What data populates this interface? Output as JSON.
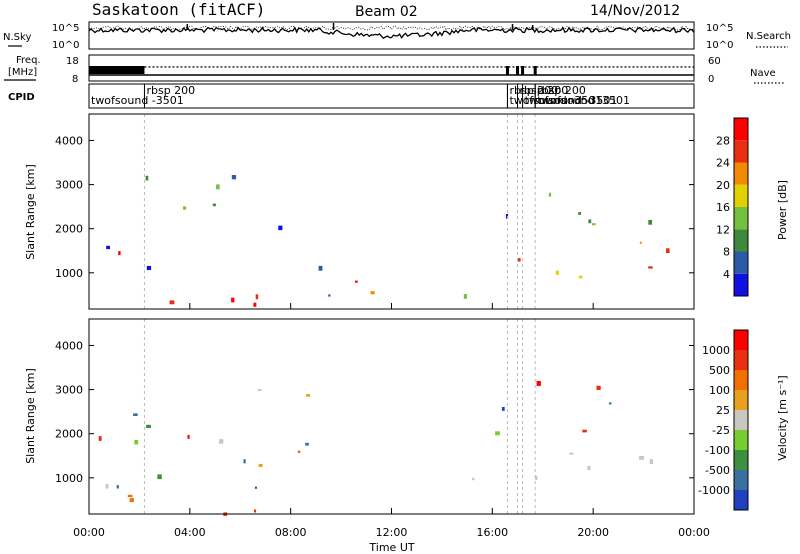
{
  "header": {
    "station": "Saskatoon (fitACF)",
    "beam": "Beam 02",
    "date": "14/Nov/2012"
  },
  "noise_panel": {
    "left_label": "N.Sky",
    "right_label": "N.Search",
    "tick_top": "10^5",
    "tick_bottom": "10^0"
  },
  "freq_panel": {
    "left_label_line1": "Freq.",
    "left_label_line2": "[MHz]",
    "tick_top": "18",
    "tick_bottom": "8",
    "right_tick_top": "60",
    "right_tick_bottom": "0",
    "right_label": "Nave"
  },
  "cpid_panel": {
    "label": "CPID",
    "entries": [
      {
        "label": "twofsound -3501",
        "time": 0.0,
        "row": 1
      },
      {
        "label": "rbsp 200",
        "time": 2.2,
        "row": 0
      },
      {
        "label": "rbsp 200",
        "time": 16.6,
        "row": 0
      },
      {
        "label": "twofsound -3501",
        "time": 16.6,
        "row": 1
      },
      {
        "label": "rbsp 200",
        "time": 17.0,
        "row": 0
      },
      {
        "label": "twofsound -3501",
        "time": 17.2,
        "row": 1
      },
      {
        "label": "rbsp 200",
        "time": 17.7,
        "row": 0
      },
      {
        "label": "twofsound -3501",
        "time": 17.7,
        "row": 1
      }
    ]
  },
  "axes": {
    "xlabel": "Time UT",
    "ylabel": "Slant Range [km]",
    "xticks": [
      "00:00",
      "04:00",
      "08:00",
      "12:00",
      "16:00",
      "20:00",
      "00:00"
    ],
    "yticks": [
      "1000",
      "2000",
      "3000",
      "4000"
    ]
  },
  "power_scale": {
    "label": "Power [dB]",
    "ticks": [
      "4",
      "8",
      "12",
      "16",
      "20",
      "24",
      "28"
    ],
    "colors": [
      "#1010e0",
      "#2c5aa8",
      "#3f8a3a",
      "#74c040",
      "#e3d000",
      "#f08a00",
      "#e83010",
      "#ff0000"
    ]
  },
  "velocity_scale": {
    "label": "Velocity [m s⁻¹]",
    "ticks": [
      "1000",
      "500",
      "100",
      "25",
      "-25",
      "-100",
      "-500",
      "-1000"
    ],
    "colors": [
      "#2040c0",
      "#3a6fa0",
      "#3e8f3e",
      "#78cc30",
      "#c8c8c0",
      "#e8a020",
      "#f07000",
      "#e83010",
      "#ff0000"
    ]
  },
  "chart_data": {
    "type": "heatmap",
    "title": "Saskatoon (fitACF)",
    "subtitle": "Beam 02",
    "date": "14/Nov/2012",
    "xlabel": "Time UT",
    "ylabel": "Slant Range [km]",
    "xlim": [
      0,
      24
    ],
    "ylim": [
      180,
      4600
    ],
    "panels": [
      {
        "name": "Power",
        "colorbar_label": "Power [dB]",
        "colorbar_range": [
          0,
          32
        ],
        "echo_regions": [
          {
            "t0": 0.0,
            "t1": 9.0,
            "r0": 200,
            "r1": 800,
            "level": "high"
          },
          {
            "t0": 0.0,
            "t1": 2.5,
            "r0": 800,
            "r1": 2200,
            "level": "mixed"
          },
          {
            "t0": 1.5,
            "t1": 8.0,
            "r0": 2000,
            "r1": 3300,
            "level": "low"
          },
          {
            "t0": 8.0,
            "t1": 12.0,
            "r0": 200,
            "r1": 1500,
            "level": "mixed"
          },
          {
            "t0": 12.0,
            "t1": 16.0,
            "r0": 200,
            "r1": 600,
            "level": "low"
          },
          {
            "t0": 15.0,
            "t1": 24.0,
            "r0": 900,
            "r1": 1800,
            "level": "high"
          },
          {
            "t0": 16.0,
            "t1": 23.0,
            "r0": 2000,
            "r1": 3200,
            "level": "low"
          }
        ]
      },
      {
        "name": "Velocity",
        "colorbar_label": "Velocity [m s-1]",
        "colorbar_range": [
          -1000,
          1000
        ],
        "echo_regions": [
          {
            "t0": 0.0,
            "t1": 9.0,
            "r0": 200,
            "r1": 800,
            "level": "negative"
          },
          {
            "t0": 0.0,
            "t1": 9.0,
            "r0": 800,
            "r1": 3300,
            "level": "mixed"
          },
          {
            "t0": 15.0,
            "t1": 24.0,
            "r0": 900,
            "r1": 1800,
            "level": "zero"
          },
          {
            "t0": 16.0,
            "t1": 23.0,
            "r0": 2000,
            "r1": 3200,
            "level": "mixed"
          }
        ]
      }
    ]
  }
}
